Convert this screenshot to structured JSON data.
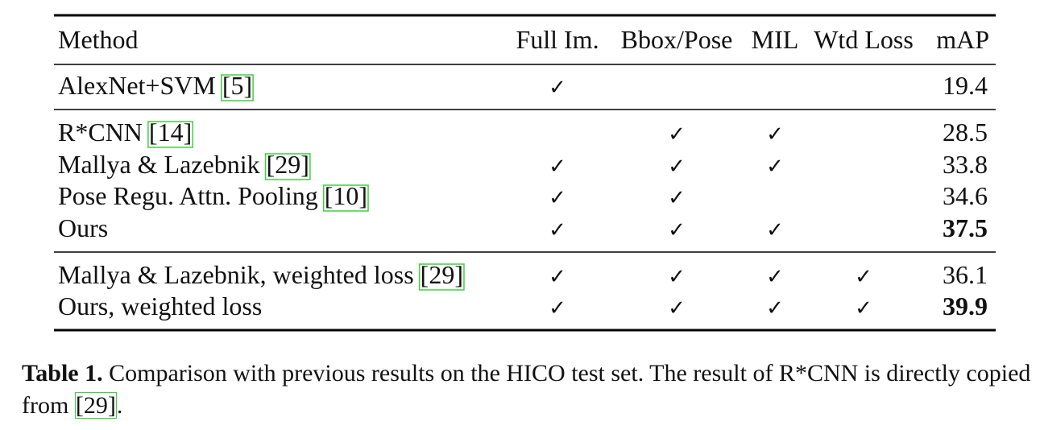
{
  "table": {
    "header": {
      "method": "Method",
      "full_im": "Full Im.",
      "bbox_pose": "Bbox/Pose",
      "mil": "MIL",
      "wtd_loss": "Wtd Loss",
      "mAP": "mAP"
    },
    "groups": [
      [
        {
          "method": "AlexNet+SVM",
          "cite": "[5]",
          "full_im": "✓",
          "mAP": 19.4
        }
      ],
      [
        {
          "method": "R*CNN",
          "cite": "[14]",
          "bbox_pose": "✓",
          "mil": "✓",
          "mAP": 28.5
        },
        {
          "method": "Mallya & Lazebnik",
          "cite": "[29]",
          "full_im": "✓",
          "bbox_pose": "✓",
          "mil": "✓",
          "mAP": 33.8
        },
        {
          "method": "Pose Regu. Attn. Pooling",
          "cite": "[10]",
          "full_im": "✓",
          "bbox_pose": "✓",
          "mAP": 34.6
        },
        {
          "method": "Ours",
          "full_im": "✓",
          "bbox_pose": "✓",
          "mil": "✓",
          "mAP": 37.5,
          "bold": true
        }
      ],
      [
        {
          "method": "Mallya & Lazebnik, weighted loss",
          "cite": "[29]",
          "full_im": "✓",
          "bbox_pose": "✓",
          "mil": "✓",
          "wtd_loss": "✓",
          "mAP": 36.1
        },
        {
          "method": "Ours, weighted loss",
          "full_im": "✓",
          "bbox_pose": "✓",
          "mil": "✓",
          "wtd_loss": "✓",
          "mAP": 39.9,
          "bold": true
        }
      ]
    ]
  },
  "caption": {
    "label": "Table 1.",
    "text": "Comparison with previous results on the HICO test set. The result of R*CNN is directly copied from",
    "cite": "[29]",
    "end": "."
  }
}
